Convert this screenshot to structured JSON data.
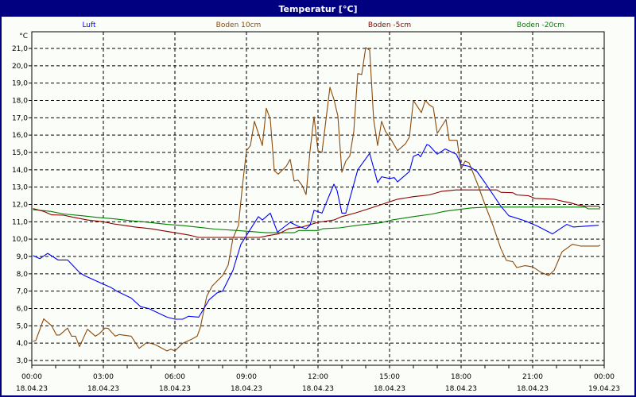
{
  "window": {
    "title": "Temperatur [°C]"
  },
  "chart_data": {
    "type": "line",
    "title": "Temperatur [°C]",
    "ylabel": "°C",
    "ylim": [
      3.0,
      21.0
    ],
    "xlim": [
      "18.04.23 00:00",
      "19.04.23 00:00"
    ],
    "grid": true,
    "legend_placement": "top",
    "y_ticks": [
      "3,0",
      "4,0",
      "5,0",
      "6,0",
      "7,0",
      "8,0",
      "9,0",
      "10,0",
      "11,0",
      "12,0",
      "13,0",
      "14,0",
      "15,0",
      "16,0",
      "17,0",
      "18,0",
      "19,0",
      "20,0",
      "21,0"
    ],
    "x_ticks": [
      {
        "time": "00:00",
        "date": "18.04.23"
      },
      {
        "time": "03:00",
        "date": "18.04.23"
      },
      {
        "time": "06:00",
        "date": "18.04.23"
      },
      {
        "time": "09:00",
        "date": "18.04.23"
      },
      {
        "time": "12:00",
        "date": "18.04.23"
      },
      {
        "time": "15:00",
        "date": "18.04.23"
      },
      {
        "time": "18:00",
        "date": "18.04.23"
      },
      {
        "time": "21:00",
        "date": "18.04.23"
      },
      {
        "time": "00:00",
        "date": "19.04.23"
      }
    ],
    "series": [
      {
        "name": "Luft",
        "color": "#0000ff",
        "points": [
          [
            "00:03",
            9.05
          ],
          [
            "00:20",
            8.87
          ],
          [
            "00:40",
            9.18
          ],
          [
            "01:06",
            8.8
          ],
          [
            "01:30",
            8.8
          ],
          [
            "02:00",
            8.08
          ],
          [
            "02:12",
            7.9
          ],
          [
            "03:00",
            7.4
          ],
          [
            "03:20",
            7.2
          ],
          [
            "03:34",
            7.0
          ],
          [
            "04:10",
            6.6
          ],
          [
            "04:34",
            6.1
          ],
          [
            "04:54",
            6.0
          ],
          [
            "05:40",
            5.5
          ],
          [
            "06:00",
            5.38
          ],
          [
            "06:20",
            5.38
          ],
          [
            "06:34",
            5.55
          ],
          [
            "07:00",
            5.5
          ],
          [
            "07:26",
            6.5
          ],
          [
            "07:46",
            6.9
          ],
          [
            "08:00",
            7.0
          ],
          [
            "08:26",
            8.2
          ],
          [
            "08:46",
            9.7
          ],
          [
            "09:30",
            11.3
          ],
          [
            "09:40",
            11.1
          ],
          [
            "10:00",
            11.5
          ],
          [
            "10:18",
            10.4
          ],
          [
            "10:50",
            10.97
          ],
          [
            "11:10",
            10.74
          ],
          [
            "11:30",
            10.6
          ],
          [
            "11:40",
            10.8
          ],
          [
            "11:50",
            11.66
          ],
          [
            "12:10",
            11.5
          ],
          [
            "12:40",
            13.17
          ],
          [
            "12:48",
            12.8
          ],
          [
            "13:00",
            11.5
          ],
          [
            "13:10",
            11.5
          ],
          [
            "13:40",
            14.0
          ],
          [
            "14:10",
            14.95
          ],
          [
            "14:30",
            13.26
          ],
          [
            "14:40",
            13.6
          ],
          [
            "15:00",
            13.5
          ],
          [
            "15:12",
            13.55
          ],
          [
            "15:20",
            13.3
          ],
          [
            "15:50",
            13.9
          ],
          [
            "16:00",
            14.77
          ],
          [
            "16:12",
            14.9
          ],
          [
            "16:18",
            14.75
          ],
          [
            "16:34",
            15.46
          ],
          [
            "16:40",
            15.4
          ],
          [
            "17:00",
            14.9
          ],
          [
            "17:20",
            15.2
          ],
          [
            "17:48",
            14.9
          ],
          [
            "18:00",
            14.3
          ],
          [
            "18:20",
            14.2
          ],
          [
            "18:40",
            13.9
          ],
          [
            "19:00",
            13.26
          ],
          [
            "19:40",
            11.9
          ],
          [
            "20:00",
            11.35
          ],
          [
            "20:40",
            11.06
          ],
          [
            "21:12",
            10.75
          ],
          [
            "21:50",
            10.3
          ],
          [
            "22:26",
            10.85
          ],
          [
            "22:42",
            10.7
          ],
          [
            "23:46",
            10.8
          ]
        ]
      },
      {
        "name": "Boden 10cm",
        "color": "#8b4a0c",
        "points": [
          [
            "00:03",
            4.1
          ],
          [
            "00:10",
            4.15
          ],
          [
            "00:30",
            5.4
          ],
          [
            "00:50",
            5.0
          ],
          [
            "01:02",
            4.47
          ],
          [
            "01:10",
            4.47
          ],
          [
            "01:30",
            4.87
          ],
          [
            "01:40",
            4.4
          ],
          [
            "01:50",
            4.4
          ],
          [
            "02:00",
            3.8
          ],
          [
            "02:20",
            4.8
          ],
          [
            "02:40",
            4.4
          ],
          [
            "02:50",
            4.55
          ],
          [
            "03:04",
            4.87
          ],
          [
            "03:12",
            4.85
          ],
          [
            "03:30",
            4.4
          ],
          [
            "03:40",
            4.5
          ],
          [
            "04:10",
            4.4
          ],
          [
            "04:30",
            3.7
          ],
          [
            "04:50",
            4.05
          ],
          [
            "05:12",
            3.9
          ],
          [
            "05:40",
            3.55
          ],
          [
            "05:50",
            3.65
          ],
          [
            "06:00",
            3.55
          ],
          [
            "06:20",
            4.0
          ],
          [
            "06:40",
            4.2
          ],
          [
            "06:56",
            4.4
          ],
          [
            "07:04",
            4.9
          ],
          [
            "07:20",
            6.7
          ],
          [
            "07:34",
            7.3
          ],
          [
            "08:00",
            7.9
          ],
          [
            "08:14",
            8.5
          ],
          [
            "08:26",
            10.05
          ],
          [
            "08:40",
            10.8
          ],
          [
            "08:50",
            13.1
          ],
          [
            "09:00",
            15.1
          ],
          [
            "09:10",
            15.4
          ],
          [
            "09:20",
            16.8
          ],
          [
            "09:40",
            15.4
          ],
          [
            "09:50",
            17.55
          ],
          [
            "10:00",
            16.9
          ],
          [
            "10:10",
            13.95
          ],
          [
            "10:20",
            13.75
          ],
          [
            "10:40",
            14.2
          ],
          [
            "10:50",
            14.6
          ],
          [
            "11:00",
            13.35
          ],
          [
            "11:10",
            13.4
          ],
          [
            "11:20",
            13.1
          ],
          [
            "11:30",
            12.57
          ],
          [
            "11:40",
            15.1
          ],
          [
            "11:50",
            17.06
          ],
          [
            "12:00",
            15.1
          ],
          [
            "12:10",
            15.0
          ],
          [
            "12:30",
            18.76
          ],
          [
            "12:40",
            18.07
          ],
          [
            "12:50",
            17.1
          ],
          [
            "13:00",
            13.86
          ],
          [
            "13:10",
            14.5
          ],
          [
            "13:20",
            14.8
          ],
          [
            "13:30",
            16.2
          ],
          [
            "13:40",
            19.55
          ],
          [
            "13:50",
            19.5
          ],
          [
            "14:00",
            21.05
          ],
          [
            "14:10",
            20.9
          ],
          [
            "14:20",
            16.9
          ],
          [
            "14:30",
            15.4
          ],
          [
            "14:40",
            16.8
          ],
          [
            "14:50",
            16.2
          ],
          [
            "15:00",
            15.9
          ],
          [
            "15:20",
            15.1
          ],
          [
            "15:40",
            15.5
          ],
          [
            "15:50",
            15.9
          ],
          [
            "16:00",
            18.0
          ],
          [
            "16:20",
            17.3
          ],
          [
            "16:30",
            18.0
          ],
          [
            "16:40",
            17.75
          ],
          [
            "16:50",
            17.6
          ],
          [
            "17:00",
            16.1
          ],
          [
            "17:22",
            16.9
          ],
          [
            "17:30",
            15.7
          ],
          [
            "17:50",
            15.7
          ],
          [
            "18:00",
            14.04
          ],
          [
            "18:10",
            14.5
          ],
          [
            "18:20",
            14.4
          ],
          [
            "18:40",
            13.26
          ],
          [
            "19:00",
            12.0
          ],
          [
            "19:20",
            10.8
          ],
          [
            "19:40",
            9.45
          ],
          [
            "19:54",
            8.77
          ],
          [
            "20:10",
            8.7
          ],
          [
            "20:20",
            8.36
          ],
          [
            "20:40",
            8.47
          ],
          [
            "21:00",
            8.4
          ],
          [
            "21:20",
            8.1
          ],
          [
            "21:40",
            7.9
          ],
          [
            "21:54",
            8.2
          ],
          [
            "22:14",
            9.27
          ],
          [
            "22:40",
            9.7
          ],
          [
            "23:00",
            9.6
          ],
          [
            "23:46",
            9.6
          ],
          [
            "23:50",
            9.65
          ]
        ]
      },
      {
        "name": "Boden -5cm",
        "color": "#8b0000",
        "points": [
          [
            "00:03",
            11.76
          ],
          [
            "00:30",
            11.6
          ],
          [
            "00:50",
            11.4
          ],
          [
            "01:20",
            11.38
          ],
          [
            "01:40",
            11.28
          ],
          [
            "02:20",
            11.1
          ],
          [
            "03:00",
            11.0
          ],
          [
            "03:26",
            10.88
          ],
          [
            "03:50",
            10.8
          ],
          [
            "04:20",
            10.7
          ],
          [
            "05:00",
            10.6
          ],
          [
            "05:26",
            10.5
          ],
          [
            "06:00",
            10.37
          ],
          [
            "06:34",
            10.24
          ],
          [
            "07:00",
            10.1
          ],
          [
            "09:33",
            10.1
          ],
          [
            "09:54",
            10.2
          ],
          [
            "10:20",
            10.3
          ],
          [
            "10:46",
            10.6
          ],
          [
            "11:20",
            10.7
          ],
          [
            "12:00",
            10.97
          ],
          [
            "12:40",
            11.1
          ],
          [
            "13:00",
            11.3
          ],
          [
            "13:33",
            11.5
          ],
          [
            "14:00",
            11.7
          ],
          [
            "14:40",
            12.0
          ],
          [
            "15:20",
            12.3
          ],
          [
            "16:00",
            12.45
          ],
          [
            "16:40",
            12.55
          ],
          [
            "17:10",
            12.75
          ],
          [
            "17:47",
            12.84
          ],
          [
            "19:30",
            12.84
          ],
          [
            "19:40",
            12.7
          ],
          [
            "20:10",
            12.68
          ],
          [
            "20:20",
            12.55
          ],
          [
            "20:50",
            12.5
          ],
          [
            "21:06",
            12.35
          ],
          [
            "21:54",
            12.3
          ],
          [
            "22:12",
            12.2
          ],
          [
            "22:34",
            12.1
          ],
          [
            "22:54",
            11.97
          ],
          [
            "23:12",
            11.9
          ],
          [
            "23:46",
            11.9
          ],
          [
            "23:50",
            11.8
          ]
        ]
      },
      {
        "name": "Boden -20cm",
        "color": "#008000",
        "points": [
          [
            "00:03",
            11.7
          ],
          [
            "00:47",
            11.6
          ],
          [
            "01:20",
            11.45
          ],
          [
            "02:06",
            11.35
          ],
          [
            "02:47",
            11.25
          ],
          [
            "03:26",
            11.17
          ],
          [
            "04:12",
            11.05
          ],
          [
            "04:40",
            11.0
          ],
          [
            "05:40",
            10.85
          ],
          [
            "06:20",
            10.78
          ],
          [
            "06:54",
            10.7
          ],
          [
            "07:40",
            10.58
          ],
          [
            "08:36",
            10.5
          ],
          [
            "09:50",
            10.37
          ],
          [
            "11:00",
            10.37
          ],
          [
            "11:12",
            10.5
          ],
          [
            "12:00",
            10.5
          ],
          [
            "12:12",
            10.6
          ],
          [
            "12:54",
            10.65
          ],
          [
            "13:40",
            10.8
          ],
          [
            "14:40",
            10.95
          ],
          [
            "15:06",
            11.1
          ],
          [
            "16:00",
            11.3
          ],
          [
            "16:48",
            11.45
          ],
          [
            "17:18",
            11.6
          ],
          [
            "18:00",
            11.73
          ],
          [
            "18:24",
            11.8
          ],
          [
            "19:04",
            11.85
          ],
          [
            "23:12",
            11.85
          ],
          [
            "23:20",
            11.75
          ],
          [
            "23:50",
            11.75
          ]
        ]
      }
    ]
  }
}
